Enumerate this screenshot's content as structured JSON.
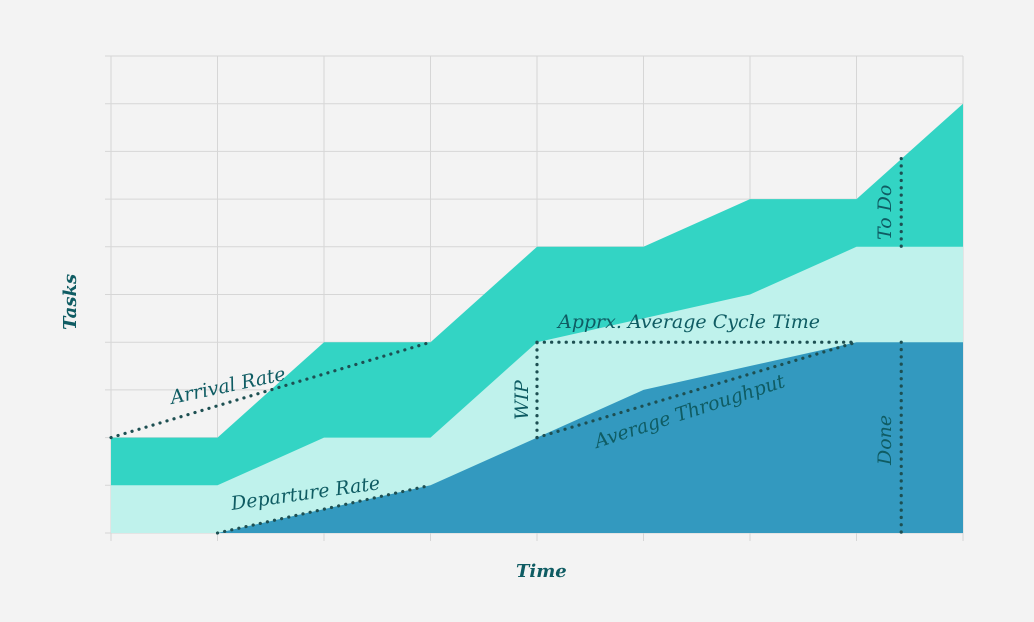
{
  "chart_data": {
    "type": "area",
    "title": "",
    "xlabel": "Time",
    "ylabel": "Tasks",
    "x": [
      0,
      1,
      2,
      3,
      4,
      5,
      6,
      7,
      8
    ],
    "xlim": [
      0,
      8
    ],
    "ylim": [
      0,
      10
    ],
    "grid": true,
    "series": [
      {
        "key": "done",
        "values": [
          0,
          0,
          0.5,
          1,
          2,
          3,
          3.5,
          4,
          4
        ],
        "color": "#3399bf"
      },
      {
        "key": "wip",
        "values": [
          1,
          1,
          2,
          2,
          4,
          4.5,
          5,
          6,
          6
        ],
        "color": "#bff2ec"
      },
      {
        "key": "todo",
        "values": [
          2,
          2,
          4,
          4,
          6,
          6,
          7,
          7,
          9
        ],
        "color": "#33d4c4"
      }
    ],
    "annotations": [
      {
        "key": "arrival",
        "text": "Arrival Rate",
        "line": [
          [
            0,
            2
          ],
          [
            3,
            4
          ]
        ]
      },
      {
        "key": "departure",
        "text": "Departure Rate",
        "line": [
          [
            1,
            0
          ],
          [
            3,
            1
          ]
        ]
      },
      {
        "key": "throughput",
        "text": "Average Throughput",
        "line": [
          [
            4,
            2
          ],
          [
            7,
            4
          ]
        ]
      },
      {
        "key": "cycle",
        "text": "Apprx. Average Cycle Time",
        "line": [
          [
            4,
            4
          ],
          [
            7,
            4
          ]
        ]
      },
      {
        "key": "wip",
        "text": "WIP",
        "line": [
          [
            4,
            2
          ],
          [
            4,
            4
          ]
        ]
      },
      {
        "key": "todo",
        "text": "To Do",
        "line": [
          [
            7.42,
            7.85
          ],
          [
            7.42,
            6
          ]
        ]
      },
      {
        "key": "done",
        "text": "Done",
        "line": [
          [
            7.42,
            4
          ],
          [
            7.42,
            0
          ]
        ]
      }
    ]
  }
}
